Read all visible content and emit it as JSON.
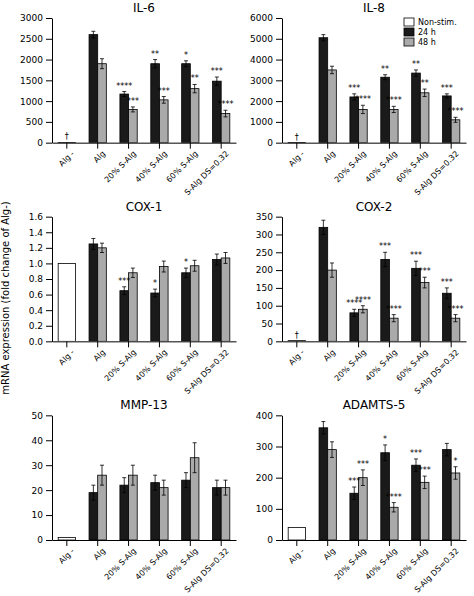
{
  "ylabel": "mRNA expression (fold change of Alg-)",
  "chart_data": [
    {
      "type": "bar",
      "title": "IL-6",
      "categories": [
        "Alg -",
        "Alg",
        "20% S-Alg",
        "40% S-Alg",
        "60% S-Alg",
        "S-Alg DS=0.32"
      ],
      "ylim": [
        0,
        3000
      ],
      "yticks": [
        0,
        500,
        1000,
        1500,
        2000,
        2500,
        3000
      ],
      "series": [
        {
          "name": "Non-stim.",
          "color": "#ffffff",
          "values": [
            5,
            null,
            null,
            null,
            null,
            null
          ],
          "annotations": [
            "†",
            null,
            null,
            null,
            null,
            null
          ]
        },
        {
          "name": "24 h",
          "color": "#1a1a1a",
          "values": [
            null,
            2600,
            1170,
            1900,
            1900,
            1480
          ],
          "errors": [
            null,
            80,
            60,
            100,
            70,
            100
          ],
          "annotations": [
            null,
            null,
            "****",
            "**",
            "*",
            "***"
          ]
        },
        {
          "name": "48 h",
          "color": "#aaaaaa",
          "values": [
            null,
            1900,
            800,
            1030,
            1300,
            700
          ],
          "errors": [
            null,
            120,
            60,
            80,
            100,
            80
          ],
          "annotations": [
            null,
            null,
            "***",
            "***",
            "**",
            "****"
          ]
        }
      ]
    },
    {
      "type": "bar",
      "title": "IL-8",
      "categories": [
        "Alg -",
        "Alg",
        "20% S-Alg",
        "40% S-Alg",
        "60% S-Alg",
        "S-Alg DS=0.32"
      ],
      "ylim": [
        0,
        6000
      ],
      "yticks": [
        0,
        1000,
        2000,
        3000,
        4000,
        5000,
        6000
      ],
      "legend": "upper right",
      "series": [
        {
          "name": "Non-stim.",
          "color": "#ffffff",
          "values": [
            5,
            null,
            null,
            null,
            null,
            null
          ],
          "annotations": [
            "†",
            null,
            null,
            null,
            null,
            null
          ]
        },
        {
          "name": "24 h",
          "color": "#1a1a1a",
          "values": [
            null,
            5050,
            2200,
            3150,
            3350,
            2250
          ],
          "errors": [
            null,
            150,
            150,
            120,
            150,
            100
          ],
          "annotations": [
            null,
            null,
            "***",
            "**",
            "**",
            "***"
          ]
        },
        {
          "name": "48 h",
          "color": "#aaaaaa",
          "values": [
            null,
            3500,
            1600,
            1600,
            2400,
            1100
          ],
          "errors": [
            null,
            180,
            200,
            150,
            180,
            120
          ],
          "annotations": [
            null,
            null,
            "****",
            "****",
            "**",
            "****"
          ]
        }
      ]
    },
    {
      "type": "bar",
      "title": "COX-1",
      "categories": [
        "Alg -",
        "Alg",
        "20% S-Alg",
        "40% S-Alg",
        "60% S-Alg",
        "S-Alg DS=0.32"
      ],
      "ylim": [
        0,
        1.6
      ],
      "yticks": [
        {
          "value": 0,
          "label": "0.0"
        },
        0.2,
        0.4,
        0.6,
        0.8,
        {
          "value": 1.0,
          "label": "1.0"
        },
        1.2,
        1.4,
        1.6
      ],
      "series": [
        {
          "name": "Non-stim.",
          "color": "#ffffff",
          "values": [
            1.0,
            null,
            null,
            null,
            null,
            null
          ]
        },
        {
          "name": "24 h",
          "color": "#1a1a1a",
          "values": [
            null,
            1.25,
            0.65,
            0.62,
            0.88,
            1.05
          ],
          "errors": [
            null,
            0.07,
            0.05,
            0.05,
            0.06,
            0.07
          ],
          "annotations": [
            null,
            null,
            "***",
            "*",
            "*",
            null
          ]
        },
        {
          "name": "48 h",
          "color": "#aaaaaa",
          "values": [
            null,
            1.2,
            0.88,
            0.96,
            0.97,
            1.07
          ],
          "errors": [
            null,
            0.06,
            0.06,
            0.07,
            0.07,
            0.07
          ]
        }
      ]
    },
    {
      "type": "bar",
      "title": "COX-2",
      "categories": [
        "Alg -",
        "Alg",
        "20% S-Alg",
        "40% S-Alg",
        "60% S-Alg",
        "S-Alg DS=0.32"
      ],
      "ylim": [
        0,
        350
      ],
      "yticks": [
        0,
        50,
        100,
        150,
        200,
        250,
        300,
        350
      ],
      "series": [
        {
          "name": "Non-stim.",
          "color": "#ffffff",
          "values": [
            2,
            null,
            null,
            null,
            null,
            null
          ],
          "annotations": [
            "†",
            null,
            null,
            null,
            null,
            null
          ]
        },
        {
          "name": "24 h",
          "color": "#1a1a1a",
          "values": [
            null,
            320,
            80,
            230,
            205,
            135
          ],
          "errors": [
            null,
            20,
            10,
            20,
            20,
            15
          ],
          "annotations": [
            null,
            null,
            "****",
            "***",
            "***",
            "***"
          ]
        },
        {
          "name": "48 h",
          "color": "#aaaaaa",
          "values": [
            null,
            200,
            90,
            65,
            165,
            65
          ],
          "errors": [
            null,
            20,
            10,
            10,
            15,
            10
          ],
          "annotations": [
            null,
            null,
            "****",
            "****",
            "***",
            "****"
          ]
        }
      ]
    },
    {
      "type": "bar",
      "title": "MMP-13",
      "categories": [
        "Alg -",
        "Alg",
        "20% S-Alg",
        "40% S-Alg",
        "60% S-Alg",
        "S-Alg DS=0.32"
      ],
      "ylim": [
        0,
        50
      ],
      "yticks": [
        0,
        10,
        20,
        30,
        40,
        50
      ],
      "series": [
        {
          "name": "Non-stim.",
          "color": "#ffffff",
          "values": [
            1,
            null,
            null,
            null,
            null,
            null
          ]
        },
        {
          "name": "24 h",
          "color": "#1a1a1a",
          "values": [
            null,
            19,
            22,
            23,
            24,
            21
          ],
          "errors": [
            null,
            3,
            3,
            3,
            3,
            3
          ]
        },
        {
          "name": "48 h",
          "color": "#aaaaaa",
          "values": [
            null,
            26,
            26,
            21,
            33,
            21
          ],
          "errors": [
            null,
            4,
            4,
            3,
            6,
            3
          ]
        }
      ]
    },
    {
      "type": "bar",
      "title": "ADAMTS-5",
      "categories": [
        "Alg -",
        "Alg",
        "20% S-Alg",
        "40% S-Alg",
        "60% S-Alg",
        "S-Alg DS=0.32"
      ],
      "ylim": [
        0,
        400
      ],
      "yticks": [
        0,
        100,
        200,
        300,
        400
      ],
      "series": [
        {
          "name": "Non-stim.",
          "color": "#ffffff",
          "values": [
            40,
            null,
            null,
            null,
            null,
            null
          ]
        },
        {
          "name": "24 h",
          "color": "#1a1a1a",
          "values": [
            null,
            360,
            150,
            280,
            240,
            290
          ],
          "errors": [
            null,
            20,
            20,
            25,
            20,
            20
          ],
          "annotations": [
            null,
            null,
            "***",
            "*",
            "***",
            null
          ]
        },
        {
          "name": "48 h",
          "color": "#aaaaaa",
          "values": [
            null,
            290,
            200,
            105,
            185,
            215
          ],
          "errors": [
            null,
            25,
            25,
            15,
            20,
            20
          ],
          "annotations": [
            null,
            null,
            "***",
            "****",
            "***",
            "*"
          ]
        }
      ]
    }
  ]
}
